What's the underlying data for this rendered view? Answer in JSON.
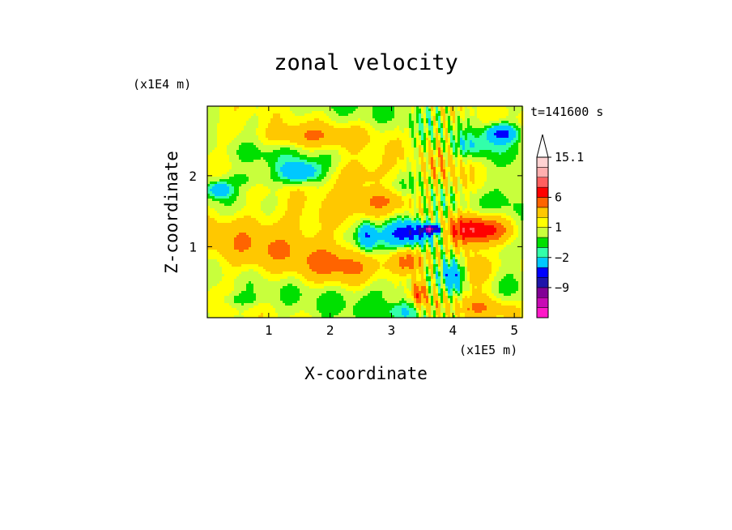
{
  "chart_data": {
    "type": "heatmap",
    "title": "zonal velocity",
    "xlabel": "X-coordinate",
    "ylabel": "Z-coordinate",
    "x_unit": "(x1E5 m)",
    "y_unit": "(x1E4 m)",
    "time_label": "t=141600 s",
    "xlim": [
      0,
      5.13
    ],
    "ylim": [
      0,
      2.98
    ],
    "x_ticks": [
      1,
      2,
      3,
      4,
      5
    ],
    "y_ticks": [
      1,
      2
    ],
    "grid": false,
    "colorbar": {
      "levels": [
        -13,
        -11,
        -9,
        -7,
        -5,
        -2,
        -1,
        0,
        1,
        2,
        4,
        6,
        8,
        10,
        12,
        15.1
      ],
      "colors": [
        "#ff19c8",
        "#c80ab4",
        "#820096",
        "#1e14aa",
        "#0000ff",
        "#00c8ff",
        "#32ffaa",
        "#00e000",
        "#c8ff3c",
        "#ffff00",
        "#ffc800",
        "#ff6400",
        "#ff0000",
        "#ff5f5f",
        "#ffafaf",
        "#ffd2d2"
      ],
      "labels": [
        "15.1",
        "6",
        "1",
        "−2",
        "−9"
      ],
      "label_values": [
        15.1,
        6,
        1,
        -2,
        -9
      ]
    },
    "field_features": [
      {
        "x": 0.4,
        "z": 1.0,
        "u": 1.3,
        "rx": 1.1,
        "rz": 0.55
      },
      {
        "x": 1.2,
        "z": 0.95,
        "u": 1.5,
        "rx": 1.0,
        "rz": 0.35
      },
      {
        "x": 1.6,
        "z": 2.55,
        "u": 3.0,
        "rx": 0.8,
        "rz": 0.16
      },
      {
        "x": 1.6,
        "z": 1.35,
        "u": 1.6,
        "rx": 1.2,
        "rz": 0.3
      },
      {
        "x": 2.2,
        "z": 0.75,
        "u": 3.2,
        "rx": 0.6,
        "rz": 0.28
      },
      {
        "x": 1.5,
        "z": 2.05,
        "u": -5.5,
        "rx": 0.28,
        "rz": 0.14
      },
      {
        "x": 0.2,
        "z": 1.8,
        "u": -5.0,
        "rx": 0.18,
        "rz": 0.1
      },
      {
        "x": 0.7,
        "z": 1.95,
        "u": -1.5,
        "rx": 0.5,
        "rz": 0.12
      },
      {
        "x": 2.5,
        "z": 2.0,
        "u": 3.0,
        "rx": 0.5,
        "rz": 0.25
      },
      {
        "x": 2.9,
        "z": 1.65,
        "u": 3.0,
        "rx": 0.5,
        "rz": 0.15
      },
      {
        "x": 3.0,
        "z": 0.4,
        "u": -1.2,
        "rx": 0.8,
        "rz": 0.22
      },
      {
        "x": 3.2,
        "z": 0.1,
        "u": -2.5,
        "rx": 0.3,
        "rz": 0.12
      },
      {
        "x": 3.3,
        "z": 1.2,
        "u": -8.5,
        "rx": 0.45,
        "rz": 0.18
      },
      {
        "x": 3.65,
        "z": 1.25,
        "u": -9.5,
        "rx": 0.15,
        "rz": 0.06
      },
      {
        "x": 3.3,
        "z": 0.8,
        "u": 4.5,
        "rx": 0.4,
        "rz": 0.18
      },
      {
        "x": 3.45,
        "z": 0.35,
        "u": 5.5,
        "rx": 0.12,
        "rz": 0.22
      },
      {
        "x": 2.6,
        "z": 1.15,
        "u": -6.0,
        "rx": 0.15,
        "rz": 0.2
      },
      {
        "x": 4.4,
        "z": 1.25,
        "u": 7.5,
        "rx": 0.55,
        "rz": 0.2
      },
      {
        "x": 4.3,
        "z": 0.65,
        "u": 3.5,
        "rx": 0.35,
        "rz": 0.3
      },
      {
        "x": 4.0,
        "z": 0.6,
        "u": -6.0,
        "rx": 0.18,
        "rz": 0.25
      },
      {
        "x": 4.7,
        "z": 0.95,
        "u": -1.5,
        "rx": 0.4,
        "rz": 0.2
      },
      {
        "x": 4.8,
        "z": 2.6,
        "u": -6.5,
        "rx": 0.25,
        "rz": 0.12
      },
      {
        "x": 4.3,
        "z": 2.4,
        "u": -2.0,
        "rx": 0.35,
        "rz": 0.15
      },
      {
        "x": 4.9,
        "z": 1.75,
        "u": -1.5,
        "rx": 0.3,
        "rz": 0.3
      },
      {
        "x": 4.5,
        "z": 0.15,
        "u": 2.5,
        "rx": 0.6,
        "rz": 0.15
      },
      {
        "x": 3.9,
        "z": 2.1,
        "u": 1.5,
        "rx": 0.3,
        "rz": 0.5
      },
      {
        "x": 0.5,
        "z": 0.25,
        "u": -1.5,
        "rx": 0.4,
        "rz": 0.1
      },
      {
        "x": 0.9,
        "z": 2.2,
        "u": -0.8,
        "rx": 0.5,
        "rz": 0.2
      },
      {
        "x": 3.0,
        "z": 2.6,
        "u": 0.5,
        "rx": 0.6,
        "rz": 0.3
      },
      {
        "x": 0.25,
        "z": 2.65,
        "u": 1.5,
        "rx": 0.4,
        "rz": 0.2
      }
    ]
  }
}
